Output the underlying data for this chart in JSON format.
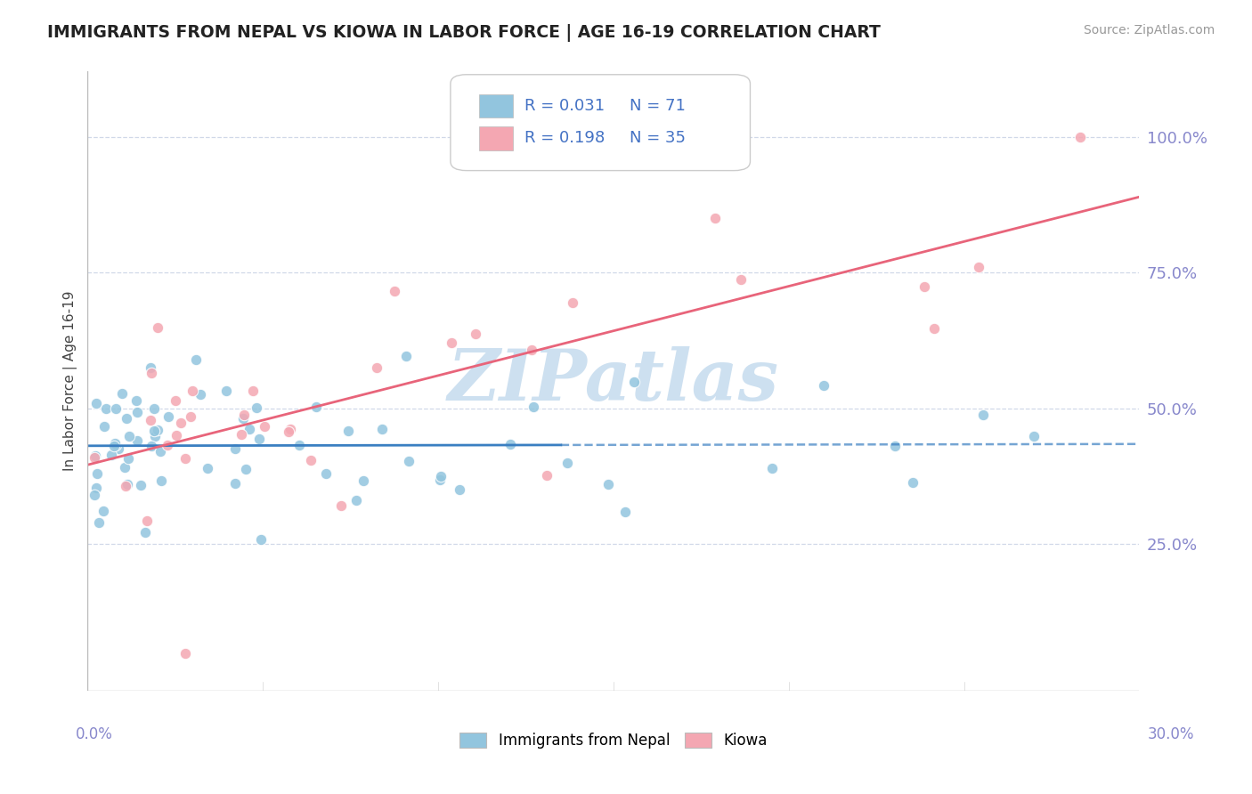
{
  "title": "IMMIGRANTS FROM NEPAL VS KIOWA IN LABOR FORCE | AGE 16-19 CORRELATION CHART",
  "source": "Source: ZipAtlas.com",
  "ylabel_label": "In Labor Force | Age 16-19",
  "ylabel_ticks": [
    "100.0%",
    "75.0%",
    "50.0%",
    "25.0%"
  ],
  "ylabel_values": [
    1.0,
    0.75,
    0.5,
    0.25
  ],
  "xlim": [
    0.0,
    0.3
  ],
  "ylim": [
    -0.02,
    1.12
  ],
  "nepal_R": 0.031,
  "nepal_N": 71,
  "kiowa_R": 0.198,
  "kiowa_N": 35,
  "nepal_color": "#92c5de",
  "kiowa_color": "#f4a7b2",
  "nepal_line_color": "#3a7fc1",
  "kiowa_line_color": "#e8647a",
  "background_color": "#ffffff",
  "watermark": "ZIPatlas",
  "watermark_color": "#cde0f0",
  "grid_color": "#d0d8e8",
  "tick_color": "#8888cc"
}
